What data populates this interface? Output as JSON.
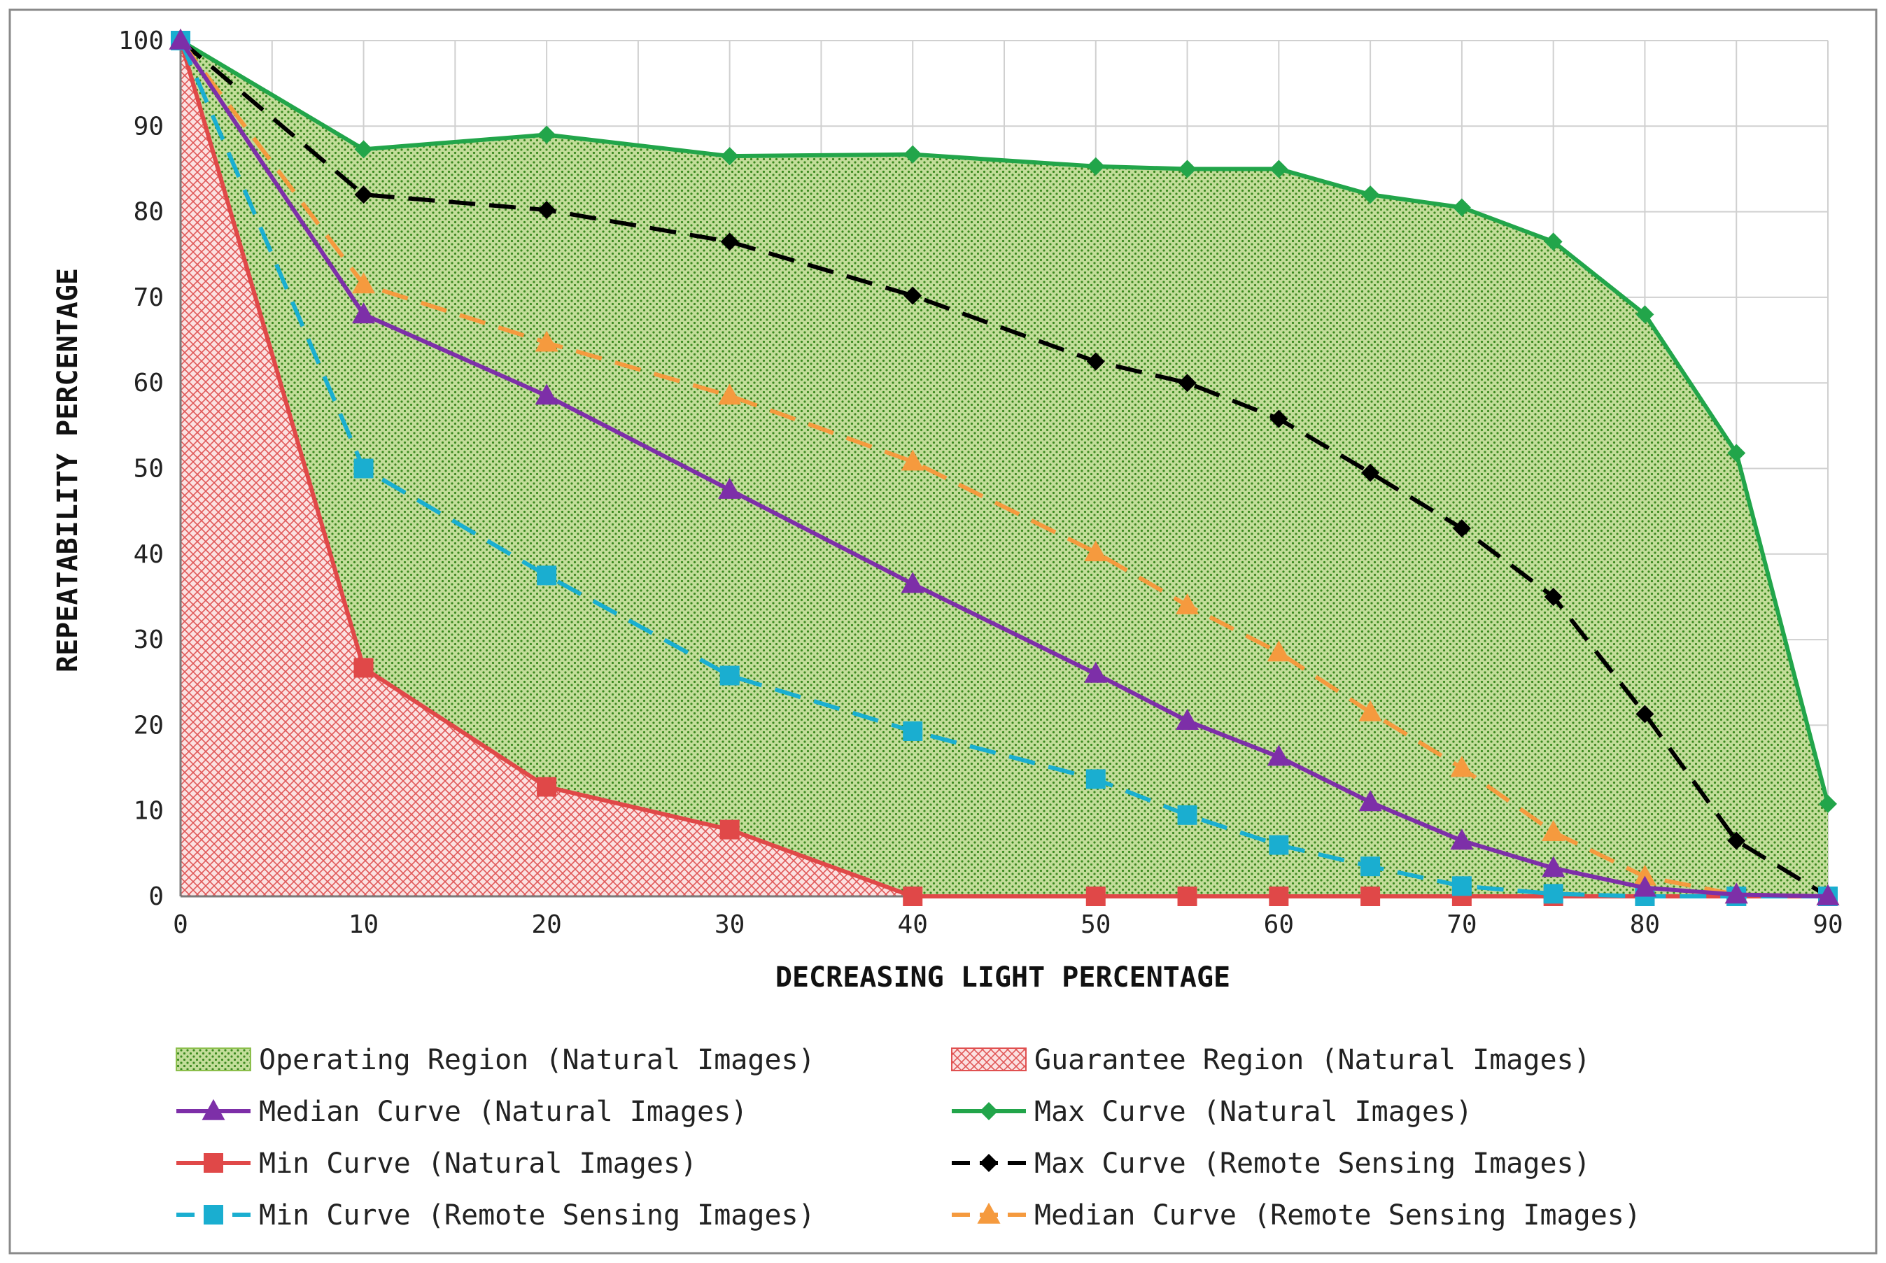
{
  "chart_data": {
    "type": "line",
    "title": "",
    "xlabel": "DECREASING LIGHT PERCENTAGE",
    "ylabel": "REPEATABILITY PERCENTAGE",
    "xlim": [
      0,
      90
    ],
    "ylim": [
      0,
      100
    ],
    "x_ticks": [
      0,
      10,
      20,
      30,
      40,
      50,
      60,
      70,
      80,
      90
    ],
    "y_ticks": [
      0,
      10,
      20,
      30,
      40,
      50,
      60,
      70,
      80,
      90,
      100
    ],
    "grid": true,
    "legend_position": "bottom",
    "x": [
      0,
      10,
      20,
      30,
      40,
      50,
      55,
      60,
      65,
      70,
      75,
      80,
      85,
      90
    ],
    "regions": [
      {
        "name": "Operating Region (Natural Images)",
        "from_series": "Min Curve (Natural Images)",
        "to_series": "Max Curve (Natural Images)",
        "color": "#8cbf4c",
        "pattern": "dots"
      },
      {
        "name": "Guarantee Region (Natural Images)",
        "from_series": "axis",
        "to_series": "Min Curve (Natural Images)",
        "color": "#e05050",
        "pattern": "crosshatch"
      }
    ],
    "series": [
      {
        "name": "Median Curve (Natural Images)",
        "color": "#7d2fa8",
        "marker": "triangle",
        "dash": "solid",
        "values": [
          100,
          68,
          58.5,
          47.5,
          36.5,
          26,
          20.5,
          16.3,
          11,
          6.5,
          3.3,
          1,
          0.2,
          0
        ]
      },
      {
        "name": "Max Curve (Natural Images)",
        "color": "#22a54a",
        "marker": "diamond",
        "dash": "solid",
        "values": [
          100,
          87.3,
          89,
          86.5,
          86.7,
          85.3,
          85,
          85,
          82,
          80.5,
          76.5,
          68,
          51.8,
          10.8
        ]
      },
      {
        "name": "Min Curve (Natural Images)",
        "color": "#e04848",
        "marker": "square",
        "dash": "solid",
        "values": [
          100,
          26.7,
          12.8,
          7.8,
          0,
          0,
          0,
          0,
          0,
          0,
          0,
          0,
          0,
          0
        ]
      },
      {
        "name": "Max Curve (Remote Sensing Images)",
        "color": "#000000",
        "marker": "diamond",
        "dash": "dashed",
        "values": [
          100,
          82,
          80.2,
          76.5,
          70.2,
          62.5,
          60,
          55.8,
          49.5,
          43,
          35,
          21.3,
          6.5,
          0
        ]
      },
      {
        "name": "Min Curve (Remote Sensing Images)",
        "color": "#1aaed0",
        "marker": "square",
        "dash": "dashed",
        "values": [
          100,
          50,
          37.5,
          25.8,
          19.3,
          13.7,
          9.5,
          6,
          3.5,
          1.2,
          0.3,
          0,
          0,
          0
        ]
      },
      {
        "name": "Median Curve (Remote Sensing Images)",
        "color": "#f59a3e",
        "marker": "triangle",
        "dash": "dashed",
        "values": [
          100,
          71.5,
          64.7,
          58.5,
          50.8,
          40.2,
          34,
          28.5,
          21.5,
          15,
          7.5,
          2.3,
          0.2,
          0
        ]
      }
    ]
  }
}
